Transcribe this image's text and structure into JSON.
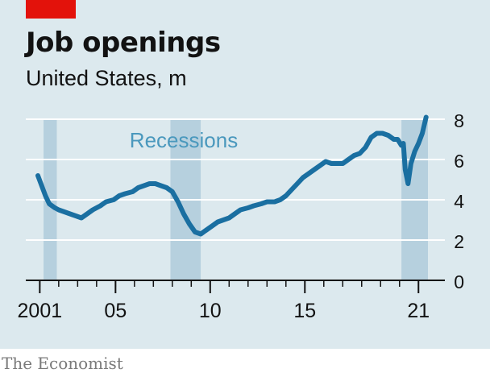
{
  "colors": {
    "background": "#dce9ee",
    "accent": "#e3120b",
    "line": "#1a6fa1",
    "recession_band": "#b6d0de",
    "recession_label": "#4a98bd",
    "gridline": "#ffffff",
    "text": "#121212",
    "source": "#7a7a7a"
  },
  "brand": {
    "source": "The Economist"
  },
  "chart_data": {
    "type": "line",
    "title": "Job openings",
    "subtitle": "United States, m",
    "xlabel": "",
    "ylabel": "",
    "x_range": [
      2000.9,
      2021.5
    ],
    "ylim": [
      0,
      8
    ],
    "y_ticks": [
      0,
      2,
      4,
      6,
      8
    ],
    "x_tick_labels": [
      {
        "value": 2001,
        "label": "2001"
      },
      {
        "value": 2005,
        "label": "05"
      },
      {
        "value": 2010,
        "label": "10"
      },
      {
        "value": 2015,
        "label": "15"
      },
      {
        "value": 2021,
        "label": "21"
      }
    ],
    "x_minor_ticks": [
      2001,
      2002,
      2003,
      2004,
      2005,
      2006,
      2007,
      2008,
      2009,
      2010,
      2011,
      2012,
      2013,
      2014,
      2015,
      2016,
      2017,
      2018,
      2019,
      2020,
      2021
    ],
    "grid": true,
    "recession_label": "Recessions",
    "recessions": [
      [
        2001.2,
        2001.9
      ],
      [
        2007.9,
        2009.5
      ],
      [
        2020.1,
        2021.5
      ]
    ],
    "series": [
      {
        "x": [
          2000.9,
          2001.1,
          2001.3,
          2001.5,
          2001.8,
          2002.0,
          2002.3,
          2002.6,
          2002.9,
          2003.2,
          2003.5,
          2003.8,
          2004.2,
          2004.5,
          2004.9,
          2005.2,
          2005.5,
          2005.9,
          2006.2,
          2006.5,
          2006.8,
          2007.1,
          2007.4,
          2007.7,
          2008.0,
          2008.3,
          2008.6,
          2008.9,
          2009.2,
          2009.5,
          2009.8,
          2010.1,
          2010.4,
          2010.7,
          2011.0,
          2011.3,
          2011.6,
          2012.0,
          2012.3,
          2012.7,
          2013.0,
          2013.4,
          2013.7,
          2014.0,
          2014.3,
          2014.6,
          2014.9,
          2015.2,
          2015.5,
          2015.8,
          2016.1,
          2016.4,
          2016.7,
          2017.0,
          2017.3,
          2017.6,
          2017.9,
          2018.2,
          2018.5,
          2018.8,
          2019.1,
          2019.4,
          2019.7,
          2019.9,
          2020.1,
          2020.2,
          2020.3,
          2020.45,
          2020.6,
          2020.8,
          2021.0,
          2021.2,
          2021.4
        ],
        "values": [
          5.2,
          4.7,
          4.2,
          3.8,
          3.6,
          3.5,
          3.4,
          3.3,
          3.2,
          3.1,
          3.3,
          3.5,
          3.7,
          3.9,
          4.0,
          4.2,
          4.3,
          4.4,
          4.6,
          4.7,
          4.8,
          4.8,
          4.7,
          4.6,
          4.4,
          3.9,
          3.3,
          2.8,
          2.4,
          2.3,
          2.5,
          2.7,
          2.9,
          3.0,
          3.1,
          3.3,
          3.5,
          3.6,
          3.7,
          3.8,
          3.9,
          3.9,
          4.0,
          4.2,
          4.5,
          4.8,
          5.1,
          5.3,
          5.5,
          5.7,
          5.9,
          5.8,
          5.8,
          5.8,
          6.0,
          6.2,
          6.3,
          6.6,
          7.1,
          7.3,
          7.3,
          7.2,
          7.0,
          7.0,
          6.7,
          6.8,
          5.5,
          4.8,
          5.8,
          6.4,
          6.8,
          7.3,
          8.1
        ]
      }
    ]
  }
}
